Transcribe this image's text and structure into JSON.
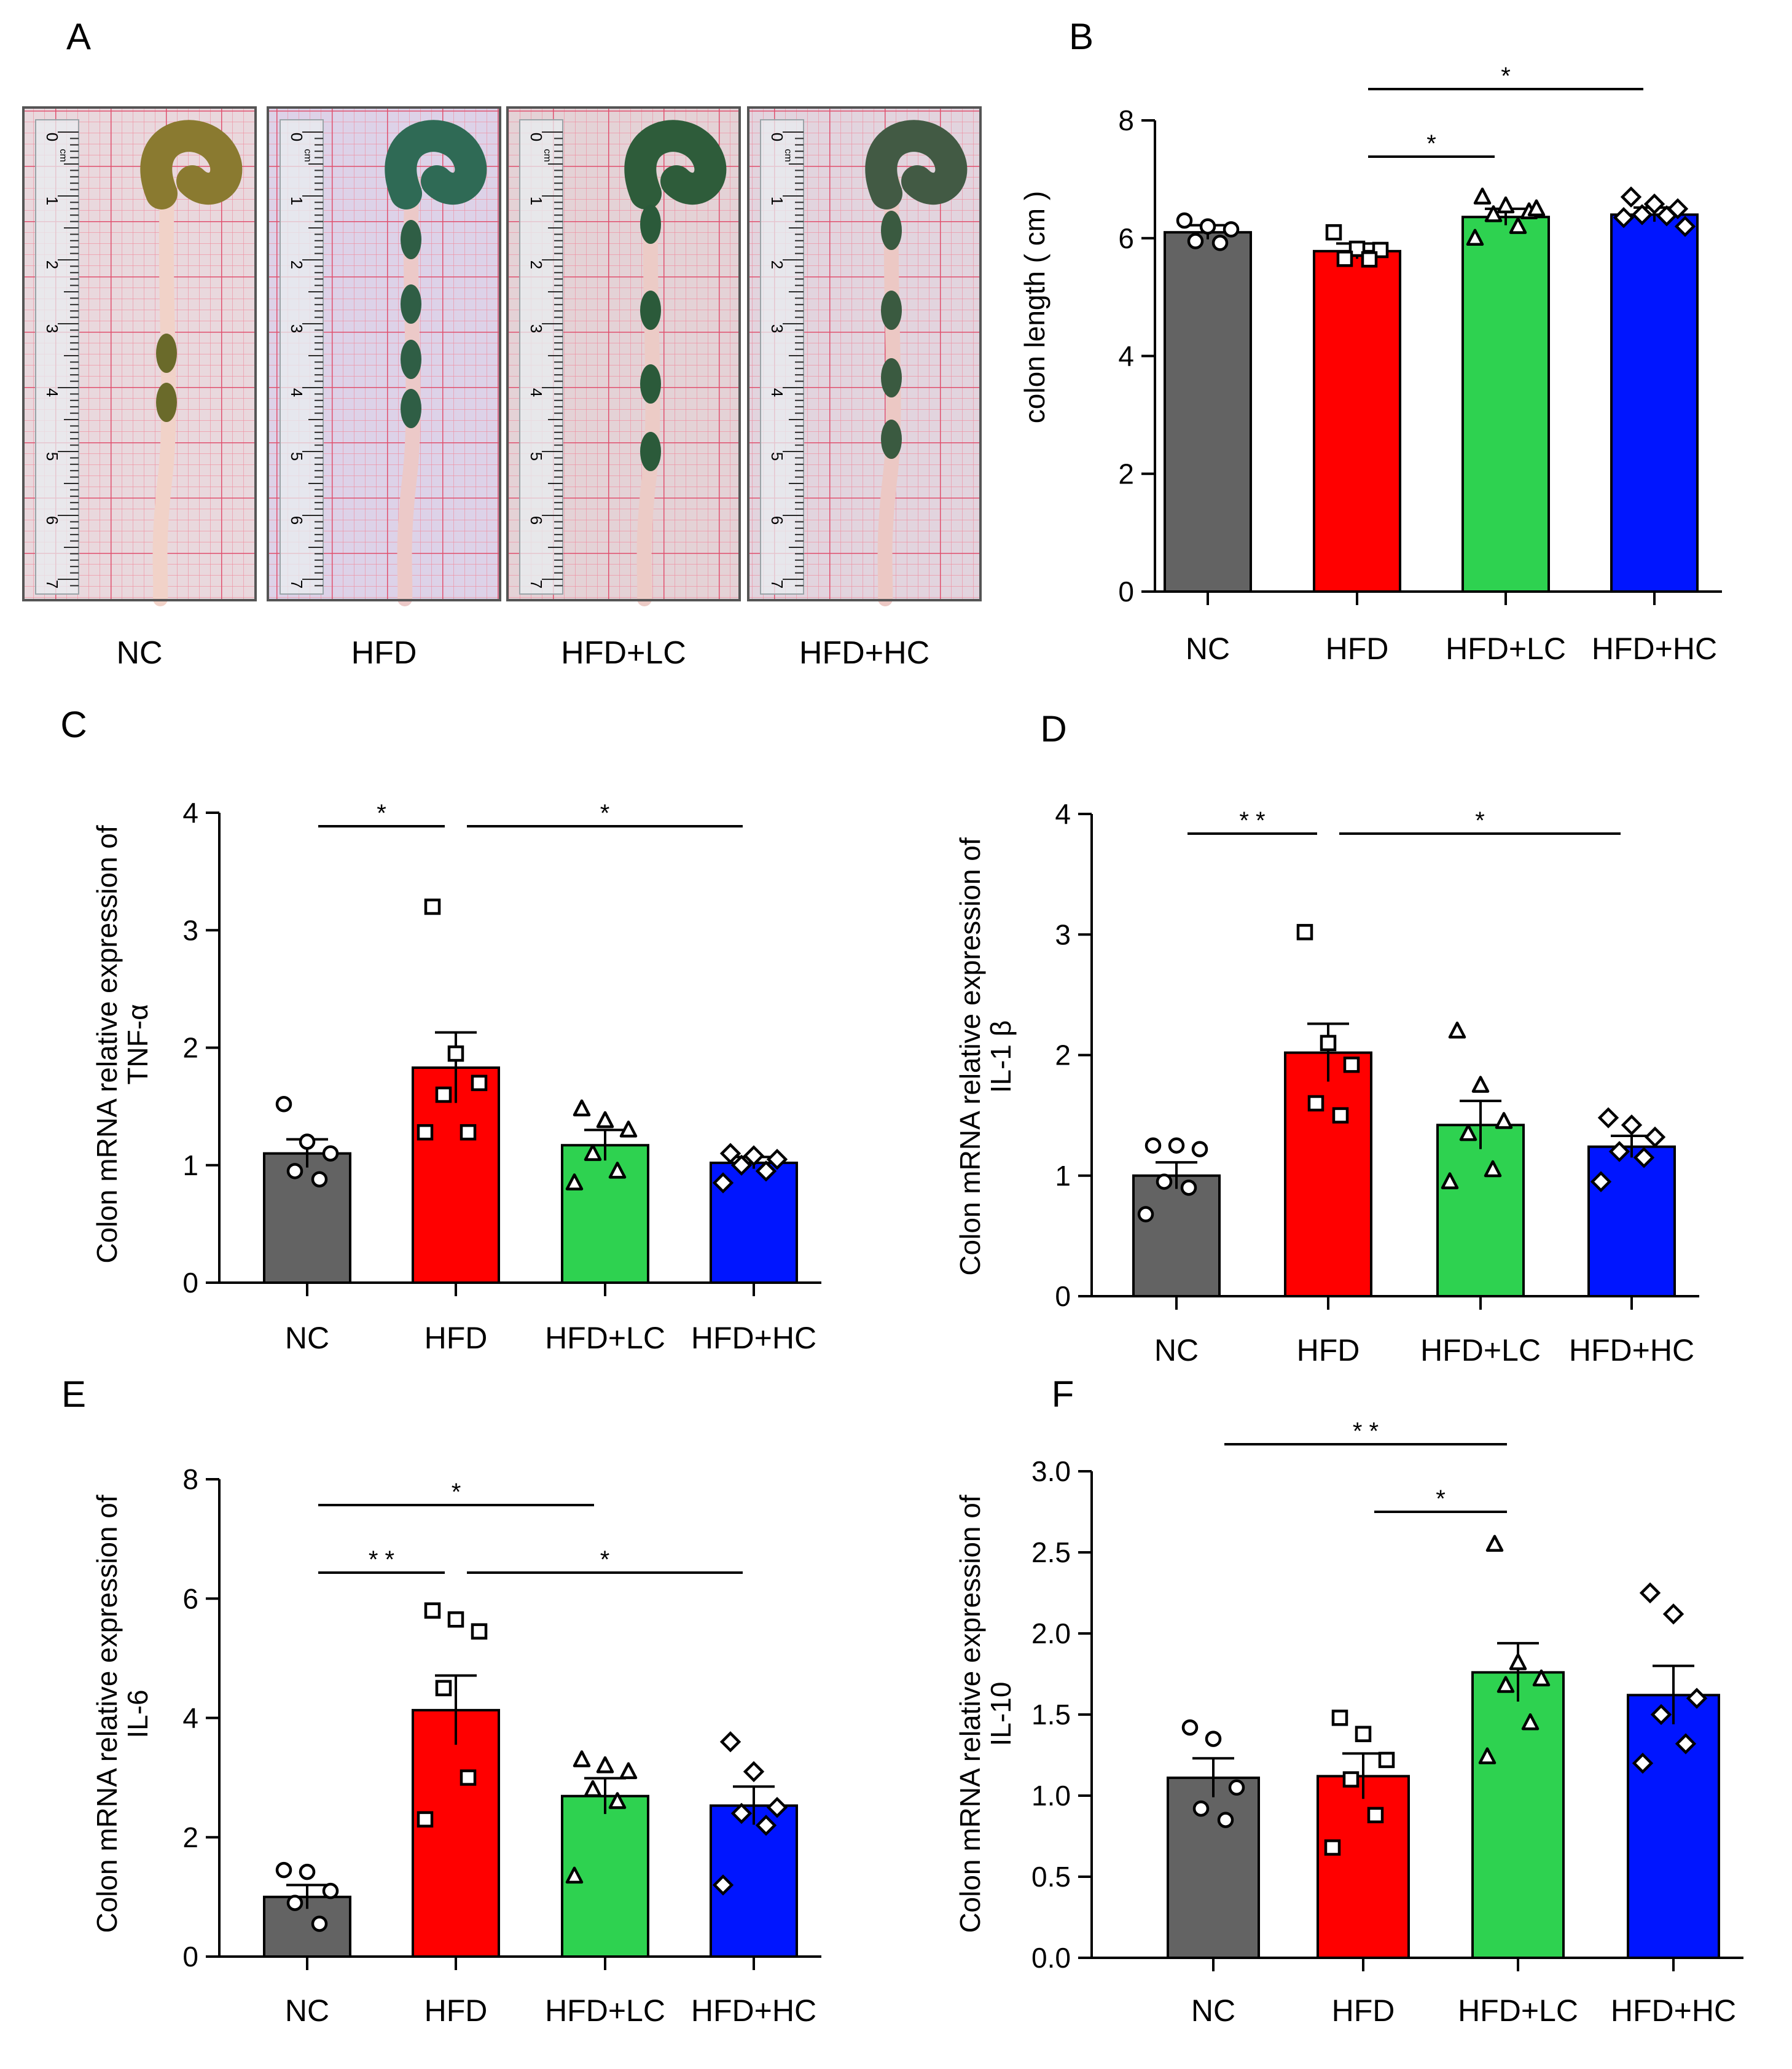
{
  "panel_a": {
    "letter": "A",
    "labels": [
      "NC",
      "HFD",
      "HFD+LC",
      "HFD+HC"
    ],
    "ruler_ticks": [
      "0",
      "1",
      "2",
      "3",
      "4",
      "5",
      "6",
      "7"
    ],
    "ruler_unit": "cm"
  },
  "colors": {
    "NC": "#636363",
    "HFD": "#ff0000",
    "HFD+LC": "#2ed250",
    "HFD+HC": "#0015ff"
  },
  "chart_data": [
    {
      "id": "B",
      "letter": "B",
      "type": "bar",
      "categories": [
        "NC",
        "HFD",
        "HFD+LC",
        "HFD+HC"
      ],
      "ylabel": [
        "colon length ( cm )"
      ],
      "ylim": [
        0,
        8
      ],
      "yticks": [
        0,
        2,
        4,
        6,
        8
      ],
      "ytick_labels": [
        "0",
        "2",
        "4",
        "6",
        "8"
      ],
      "series": [
        {
          "name": "mean",
          "values": [
            6.1,
            5.78,
            6.36,
            6.4
          ]
        }
      ],
      "sem": [
        0.12,
        0.13,
        0.14,
        0.12
      ],
      "points": [
        [
          6.3,
          6.2,
          6.15,
          5.95,
          5.92
        ],
        [
          6.1,
          5.82,
          5.8,
          5.65,
          5.64
        ],
        [
          6.7,
          6.55,
          6.45,
          6.4,
          6.2,
          6.0,
          6.5
        ],
        [
          6.7,
          6.58,
          6.5,
          6.4,
          6.38,
          6.35,
          6.2
        ]
      ],
      "sig": [
        {
          "from": 1,
          "to": 2,
          "label": "*"
        },
        {
          "from": 1,
          "to": 3,
          "label": "*"
        }
      ]
    },
    {
      "id": "C",
      "letter": "C",
      "type": "bar",
      "categories": [
        "NC",
        "HFD",
        "HFD+LC",
        "HFD+HC"
      ],
      "ylabel": [
        "Colon mRNA relative expression of",
        "TNF-α"
      ],
      "ylim": [
        0,
        4
      ],
      "yticks": [
        0,
        1,
        2,
        3,
        4
      ],
      "ytick_labels": [
        "0",
        "1",
        "2",
        "3",
        "4"
      ],
      "series": [
        {
          "name": "mean",
          "values": [
            1.1,
            1.83,
            1.17,
            1.02
          ]
        }
      ],
      "sem": [
        0.12,
        0.3,
        0.13,
        0.05
      ],
      "points": [
        [
          1.52,
          1.2,
          1.1,
          0.95,
          0.88
        ],
        [
          3.2,
          1.95,
          1.7,
          1.6,
          1.28,
          1.28
        ],
        [
          1.48,
          1.38,
          1.3,
          1.1,
          0.95,
          0.85
        ],
        [
          1.1,
          1.08,
          1.05,
          1.0,
          0.95,
          0.85
        ]
      ],
      "sig": [
        {
          "from": 0,
          "to": 1,
          "label": "*"
        },
        {
          "from": 1,
          "to": 3,
          "label": "*"
        }
      ]
    },
    {
      "id": "D",
      "letter": "D",
      "type": "bar",
      "categories": [
        "NC",
        "HFD",
        "HFD+LC",
        "HFD+HC"
      ],
      "ylabel": [
        "Colon mRNA relative expression of",
        "IL-1 β"
      ],
      "ylim": [
        0,
        4
      ],
      "yticks": [
        0,
        1,
        2,
        3,
        4
      ],
      "ytick_labels": [
        "0",
        "1",
        "2",
        "3",
        "4"
      ],
      "series": [
        {
          "name": "mean",
          "values": [
            1.0,
            2.02,
            1.42,
            1.24
          ]
        }
      ],
      "sem": [
        0.11,
        0.24,
        0.2,
        0.09
      ],
      "points": [
        [
          1.25,
          1.25,
          1.22,
          0.95,
          0.9,
          0.68
        ],
        [
          3.02,
          2.1,
          1.92,
          1.6,
          1.5
        ],
        [
          2.2,
          1.75,
          1.45,
          1.35,
          1.05,
          0.95
        ],
        [
          1.48,
          1.42,
          1.32,
          1.2,
          1.15,
          0.95
        ]
      ],
      "sig": [
        {
          "from": 0,
          "to": 1,
          "label": "* *"
        },
        {
          "from": 1,
          "to": 3,
          "label": "*"
        }
      ]
    },
    {
      "id": "E",
      "letter": "E",
      "type": "bar",
      "categories": [
        "NC",
        "HFD",
        "HFD+LC",
        "HFD+HC"
      ],
      "ylabel": [
        "Colon mRNA relative expression of",
        "IL-6"
      ],
      "ylim": [
        0,
        8
      ],
      "yticks": [
        0,
        2,
        4,
        6,
        8
      ],
      "ytick_labels": [
        "0",
        "2",
        "4",
        "6",
        "8"
      ],
      "series": [
        {
          "name": "mean",
          "values": [
            1.0,
            4.13,
            2.69,
            2.53
          ]
        }
      ],
      "sem": [
        0.2,
        0.58,
        0.3,
        0.32
      ],
      "points": [
        [
          1.45,
          1.42,
          1.1,
          0.9,
          0.55
        ],
        [
          5.8,
          5.65,
          5.45,
          4.5,
          3.0,
          2.3
        ],
        [
          3.3,
          3.2,
          3.1,
          2.8,
          2.6,
          1.35
        ],
        [
          3.6,
          3.1,
          2.5,
          2.4,
          2.2,
          1.2
        ]
      ],
      "sig": [
        {
          "from": 0,
          "to": 2,
          "label": "*"
        },
        {
          "from": 0,
          "to": 1,
          "label": "* *"
        },
        {
          "from": 1,
          "to": 3,
          "label": "*"
        }
      ]
    },
    {
      "id": "F",
      "letter": "F",
      "type": "bar",
      "categories": [
        "NC",
        "HFD",
        "HFD+LC",
        "HFD+HC"
      ],
      "ylabel": [
        "Colon mRNA relative expression of",
        "IL-10"
      ],
      "ylim": [
        0,
        3.0
      ],
      "yticks": [
        0,
        0.5,
        1.0,
        1.5,
        2.0,
        2.5,
        3.0
      ],
      "ytick_labels": [
        "0.0",
        "0.5",
        "1.0",
        "1.5",
        "2.0",
        "2.5",
        "3.0"
      ],
      "series": [
        {
          "name": "mean",
          "values": [
            1.11,
            1.12,
            1.76,
            1.62
          ]
        }
      ],
      "sem": [
        0.12,
        0.14,
        0.18,
        0.18
      ],
      "points": [
        [
          1.42,
          1.35,
          1.05,
          0.92,
          0.85
        ],
        [
          1.48,
          1.38,
          1.22,
          1.1,
          0.88,
          0.68
        ],
        [
          2.55,
          1.82,
          1.72,
          1.68,
          1.45,
          1.24
        ],
        [
          2.25,
          2.12,
          1.6,
          1.5,
          1.32,
          1.2
        ]
      ],
      "sig": [
        {
          "from": 0,
          "to": 2,
          "label": "* *"
        },
        {
          "from": 1,
          "to": 2,
          "label": "*"
        }
      ]
    }
  ]
}
